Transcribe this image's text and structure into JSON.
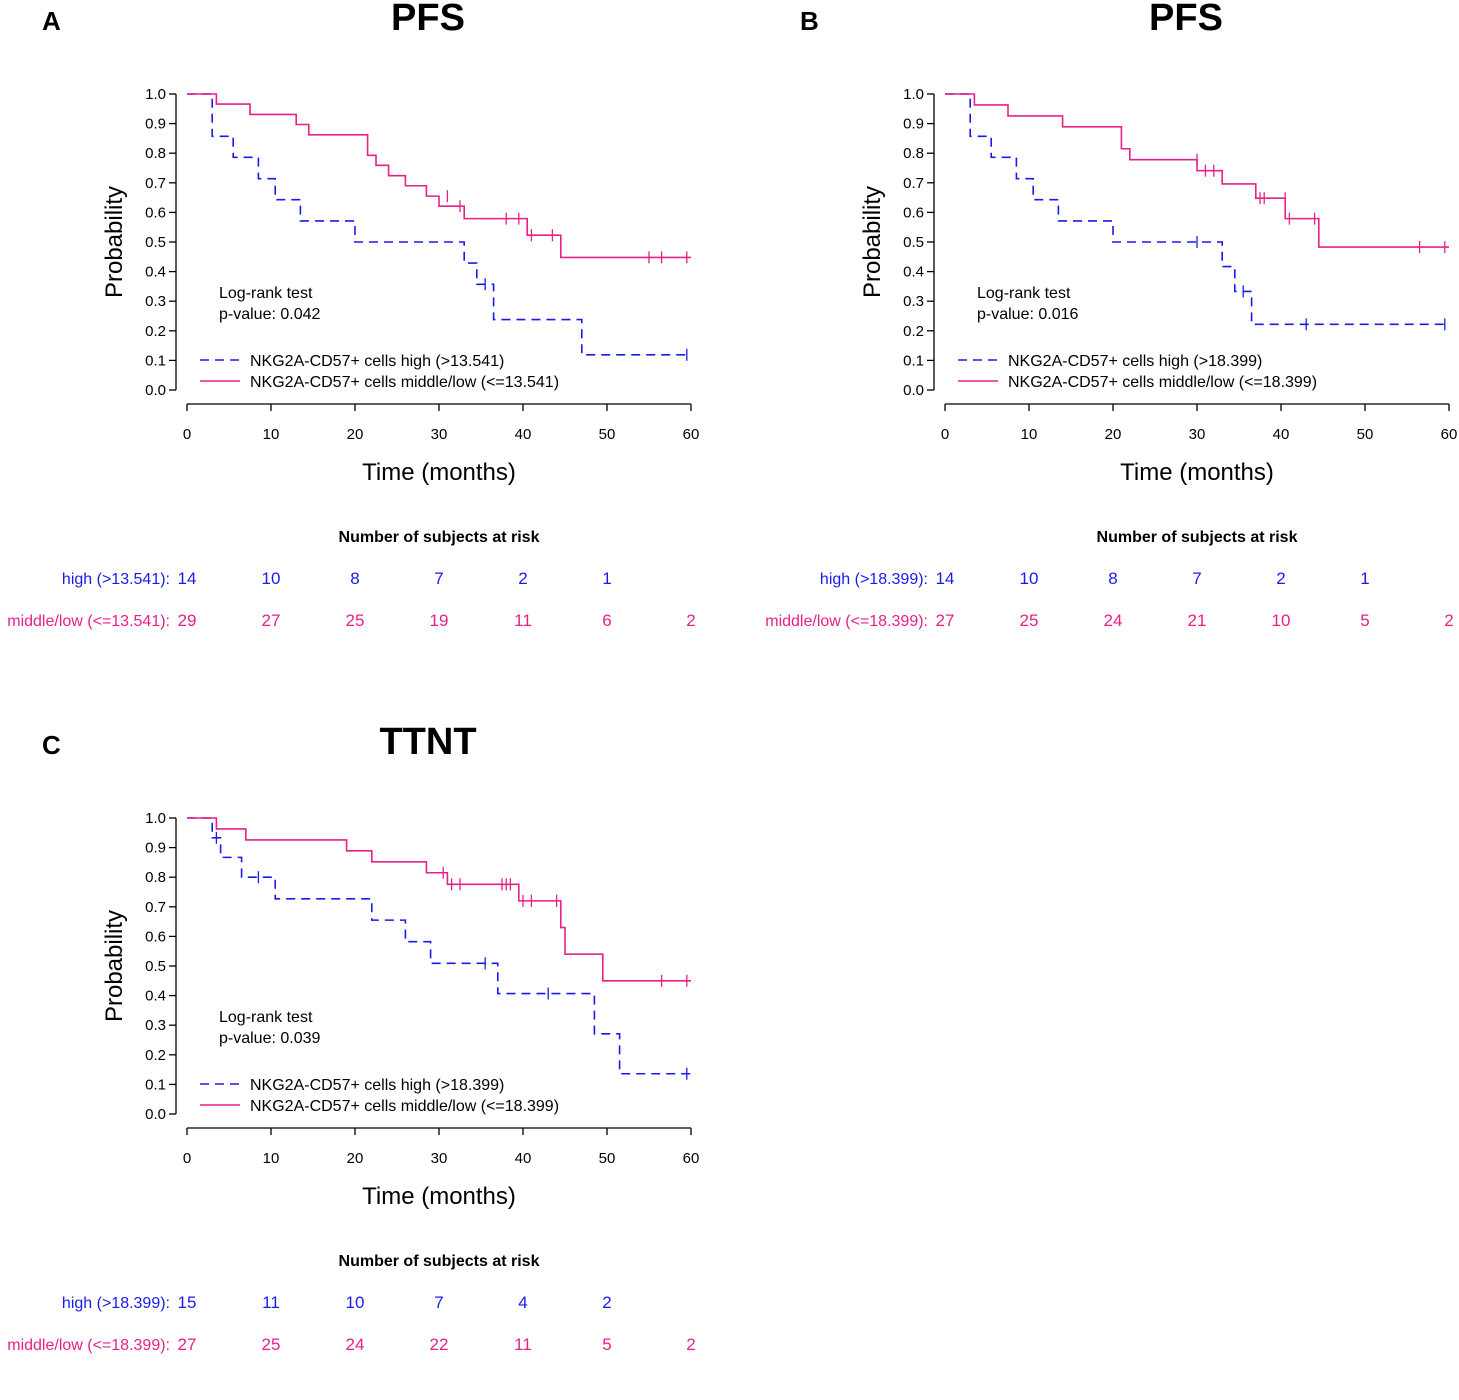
{
  "colors": {
    "high": "#1a1aee",
    "low": "#e8208a"
  },
  "chart_data": [
    {
      "type": "line",
      "panel_label": "A",
      "title": "PFS",
      "xlabel": "Time (months)",
      "ylabel": "Probability",
      "xlim": [
        0,
        60
      ],
      "ylim": [
        0,
        1
      ],
      "x_ticks": [
        "0",
        "10",
        "20",
        "30",
        "40",
        "50",
        "60"
      ],
      "y_ticks": [
        "0.0",
        "0.1",
        "0.2",
        "0.3",
        "0.4",
        "0.5",
        "0.6",
        "0.7",
        "0.8",
        "0.9",
        "1.0"
      ],
      "test_label": "Log-rank test",
      "p_value": "p-value: 0.042",
      "series": [
        {
          "name": "NKG2A-CD57+ cells high (>13.541)",
          "color": "high",
          "style": "dashed",
          "steps": [
            [
              0,
              1.0
            ],
            [
              3,
              0.857
            ],
            [
              5.5,
              0.786
            ],
            [
              8.5,
              0.714
            ],
            [
              10.5,
              0.643
            ],
            [
              13.5,
              0.571
            ],
            [
              20,
              0.5
            ],
            [
              33,
              0.429
            ],
            [
              34.5,
              0.357
            ],
            [
              36.5,
              0.238
            ],
            [
              47,
              0.119
            ],
            [
              60,
              0.119
            ]
          ],
          "censor": [
            [
              35.5,
              0.357
            ],
            [
              59.5,
              0.119
            ]
          ]
        },
        {
          "name": "NKG2A-CD57+ cells middle/low (<=13.541)",
          "color": "low",
          "style": "solid",
          "steps": [
            [
              0,
              1.0
            ],
            [
              3.5,
              0.966
            ],
            [
              7.5,
              0.931
            ],
            [
              13,
              0.897
            ],
            [
              14.5,
              0.862
            ],
            [
              21.5,
              0.793
            ],
            [
              22.5,
              0.759
            ],
            [
              24,
              0.724
            ],
            [
              26,
              0.69
            ],
            [
              28.5,
              0.655
            ],
            [
              30,
              0.621
            ],
            [
              33,
              0.579
            ],
            [
              40.5,
              0.523
            ],
            [
              44.5,
              0.448
            ],
            [
              60,
              0.448
            ]
          ],
          "censor": [
            [
              31,
              0.655
            ],
            [
              32.5,
              0.621
            ],
            [
              38,
              0.579
            ],
            [
              39.5,
              0.579
            ],
            [
              41,
              0.523
            ],
            [
              43.5,
              0.523
            ],
            [
              55,
              0.448
            ],
            [
              56.5,
              0.448
            ],
            [
              59.5,
              0.448
            ]
          ]
        }
      ],
      "risk_table": {
        "title": "Number of subjects at risk",
        "rows": [
          {
            "label": "high (>13.541):",
            "color": "high",
            "values": [
              "14",
              "10",
              "8",
              "7",
              "2",
              "1",
              ""
            ]
          },
          {
            "label": "middle/low (<=13.541):",
            "color": "low",
            "values": [
              "29",
              "27",
              "25",
              "19",
              "11",
              "6",
              "2"
            ]
          }
        ]
      }
    },
    {
      "type": "line",
      "panel_label": "B",
      "title": "PFS",
      "xlabel": "Time (months)",
      "ylabel": "Probability",
      "xlim": [
        0,
        60
      ],
      "ylim": [
        0,
        1
      ],
      "x_ticks": [
        "0",
        "10",
        "20",
        "30",
        "40",
        "50",
        "60"
      ],
      "y_ticks": [
        "0.0",
        "0.1",
        "0.2",
        "0.3",
        "0.4",
        "0.5",
        "0.6",
        "0.7",
        "0.8",
        "0.9",
        "1.0"
      ],
      "test_label": "Log-rank test",
      "p_value": "p-value: 0.016",
      "series": [
        {
          "name": "NKG2A-CD57+ cells high (>18.399)",
          "color": "high",
          "style": "dashed",
          "steps": [
            [
              0,
              1.0
            ],
            [
              3,
              0.857
            ],
            [
              5.5,
              0.786
            ],
            [
              8.5,
              0.714
            ],
            [
              10.5,
              0.643
            ],
            [
              13.5,
              0.571
            ],
            [
              20,
              0.5
            ],
            [
              33,
              0.417
            ],
            [
              34.5,
              0.333
            ],
            [
              36.5,
              0.222
            ],
            [
              60,
              0.222
            ]
          ],
          "censor": [
            [
              30,
              0.5
            ],
            [
              35.5,
              0.333
            ],
            [
              43,
              0.222
            ],
            [
              59.5,
              0.222
            ]
          ]
        },
        {
          "name": "NKG2A-CD57+ cells middle/low (<=18.399)",
          "color": "low",
          "style": "solid",
          "steps": [
            [
              0,
              1.0
            ],
            [
              3.5,
              0.963
            ],
            [
              7.5,
              0.926
            ],
            [
              14,
              0.889
            ],
            [
              21,
              0.815
            ],
            [
              22,
              0.778
            ],
            [
              30,
              0.741
            ],
            [
              33,
              0.696
            ],
            [
              37,
              0.648
            ],
            [
              40.5,
              0.579
            ],
            [
              44.5,
              0.483
            ],
            [
              60,
              0.483
            ]
          ],
          "censor": [
            [
              30,
              0.778
            ],
            [
              31,
              0.741
            ],
            [
              32,
              0.741
            ],
            [
              37.5,
              0.648
            ],
            [
              38,
              0.648
            ],
            [
              40.5,
              0.648
            ],
            [
              41,
              0.579
            ],
            [
              44,
              0.579
            ],
            [
              56.5,
              0.483
            ],
            [
              59.5,
              0.483
            ]
          ]
        }
      ],
      "risk_table": {
        "title": "Number of subjects at risk",
        "rows": [
          {
            "label": "high (>18.399):",
            "color": "high",
            "values": [
              "14",
              "10",
              "8",
              "7",
              "2",
              "1",
              ""
            ]
          },
          {
            "label": "middle/low (<=18.399):",
            "color": "low",
            "values": [
              "27",
              "25",
              "24",
              "21",
              "10",
              "5",
              "2"
            ]
          }
        ]
      }
    },
    {
      "type": "line",
      "panel_label": "C",
      "title": "TTNT",
      "xlabel": "Time (months)",
      "ylabel": "Probability",
      "xlim": [
        0,
        60
      ],
      "ylim": [
        0,
        1
      ],
      "x_ticks": [
        "0",
        "10",
        "20",
        "30",
        "40",
        "50",
        "60"
      ],
      "y_ticks": [
        "0.0",
        "0.1",
        "0.2",
        "0.3",
        "0.4",
        "0.5",
        "0.6",
        "0.7",
        "0.8",
        "0.9",
        "1.0"
      ],
      "test_label": "Log-rank test",
      "p_value": "p-value: 0.039",
      "series": [
        {
          "name": "NKG2A-CD57+ cells high (>18.399)",
          "color": "high",
          "style": "dashed",
          "steps": [
            [
              0,
              1.0
            ],
            [
              3,
              0.933
            ],
            [
              4,
              0.867
            ],
            [
              6.5,
              0.8
            ],
            [
              10.5,
              0.727
            ],
            [
              22,
              0.655
            ],
            [
              26,
              0.582
            ],
            [
              29,
              0.509
            ],
            [
              37,
              0.407
            ],
            [
              48.5,
              0.271
            ],
            [
              51.5,
              0.136
            ],
            [
              60,
              0.136
            ]
          ],
          "censor": [
            [
              3.5,
              0.933
            ],
            [
              8.5,
              0.8
            ],
            [
              35.5,
              0.509
            ],
            [
              43,
              0.407
            ],
            [
              59.5,
              0.136
            ]
          ]
        },
        {
          "name": "NKG2A-CD57+ cells middle/low (<=18.399)",
          "color": "low",
          "style": "solid",
          "steps": [
            [
              0,
              1.0
            ],
            [
              3.5,
              0.963
            ],
            [
              7,
              0.926
            ],
            [
              19,
              0.889
            ],
            [
              22,
              0.852
            ],
            [
              28.5,
              0.815
            ],
            [
              31,
              0.776
            ],
            [
              39.5,
              0.72
            ],
            [
              44.5,
              0.63
            ],
            [
              45,
              0.54
            ],
            [
              49.5,
              0.45
            ],
            [
              60,
              0.45
            ]
          ],
          "censor": [
            [
              30.5,
              0.815
            ],
            [
              31.5,
              0.776
            ],
            [
              32.5,
              0.776
            ],
            [
              37.5,
              0.776
            ],
            [
              38,
              0.776
            ],
            [
              38.5,
              0.776
            ],
            [
              40,
              0.72
            ],
            [
              41,
              0.72
            ],
            [
              44,
              0.72
            ],
            [
              56.5,
              0.45
            ],
            [
              59.5,
              0.45
            ]
          ]
        }
      ],
      "risk_table": {
        "title": "Number of subjects at risk",
        "rows": [
          {
            "label": "high (>18.399):",
            "color": "high",
            "values": [
              "15",
              "11",
              "10",
              "7",
              "4",
              "2",
              ""
            ]
          },
          {
            "label": "middle/low (<=18.399):",
            "color": "low",
            "values": [
              "27",
              "25",
              "24",
              "22",
              "11",
              "5",
              "2"
            ]
          }
        ]
      }
    }
  ]
}
